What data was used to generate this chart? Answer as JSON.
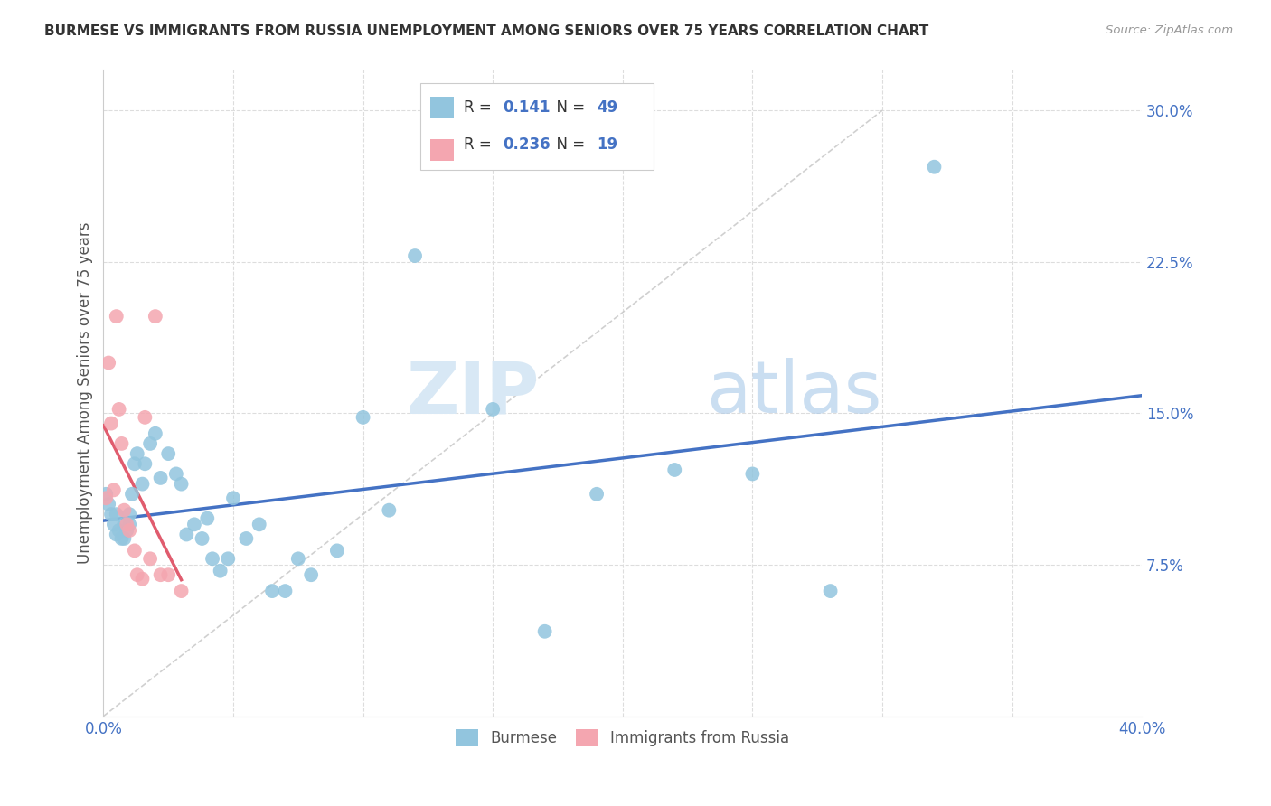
{
  "title": "BURMESE VS IMMIGRANTS FROM RUSSIA UNEMPLOYMENT AMONG SENIORS OVER 75 YEARS CORRELATION CHART",
  "source": "Source: ZipAtlas.com",
  "ylabel": "Unemployment Among Seniors over 75 years",
  "xlim": [
    0.0,
    0.4
  ],
  "ylim": [
    0.0,
    0.32
  ],
  "burmese_color": "#92C5DE",
  "russia_color": "#F4A6B0",
  "trend_blue_color": "#4472C4",
  "trend_pink_color": "#E05C6E",
  "trend_diag_color": "#C8C8C8",
  "R_burmese": 0.141,
  "N_burmese": 49,
  "R_russia": 0.236,
  "N_russia": 19,
  "burmese_x": [
    0.001,
    0.002,
    0.003,
    0.004,
    0.005,
    0.005,
    0.006,
    0.007,
    0.008,
    0.008,
    0.009,
    0.01,
    0.01,
    0.011,
    0.012,
    0.013,
    0.015,
    0.016,
    0.018,
    0.02,
    0.022,
    0.025,
    0.028,
    0.03,
    0.032,
    0.035,
    0.038,
    0.04,
    0.042,
    0.045,
    0.048,
    0.05,
    0.055,
    0.06,
    0.065,
    0.07,
    0.075,
    0.08,
    0.09,
    0.1,
    0.11,
    0.12,
    0.15,
    0.17,
    0.19,
    0.22,
    0.25,
    0.28,
    0.32
  ],
  "burmese_y": [
    0.11,
    0.105,
    0.1,
    0.095,
    0.09,
    0.1,
    0.092,
    0.088,
    0.095,
    0.088,
    0.092,
    0.1,
    0.095,
    0.11,
    0.125,
    0.13,
    0.115,
    0.125,
    0.135,
    0.14,
    0.118,
    0.13,
    0.12,
    0.115,
    0.09,
    0.095,
    0.088,
    0.098,
    0.078,
    0.072,
    0.078,
    0.108,
    0.088,
    0.095,
    0.062,
    0.062,
    0.078,
    0.07,
    0.082,
    0.148,
    0.102,
    0.228,
    0.152,
    0.042,
    0.11,
    0.122,
    0.12,
    0.062,
    0.272
  ],
  "russia_x": [
    0.001,
    0.002,
    0.003,
    0.004,
    0.005,
    0.006,
    0.007,
    0.008,
    0.009,
    0.01,
    0.012,
    0.013,
    0.015,
    0.016,
    0.018,
    0.02,
    0.022,
    0.025,
    0.03
  ],
  "russia_y": [
    0.108,
    0.175,
    0.145,
    0.112,
    0.198,
    0.152,
    0.135,
    0.102,
    0.095,
    0.092,
    0.082,
    0.07,
    0.068,
    0.148,
    0.078,
    0.198,
    0.07,
    0.07,
    0.062
  ],
  "legend_burmese": "Burmese",
  "legend_russia": "Immigrants from Russia",
  "watermark_zip": "ZIP",
  "watermark_atlas": "atlas"
}
